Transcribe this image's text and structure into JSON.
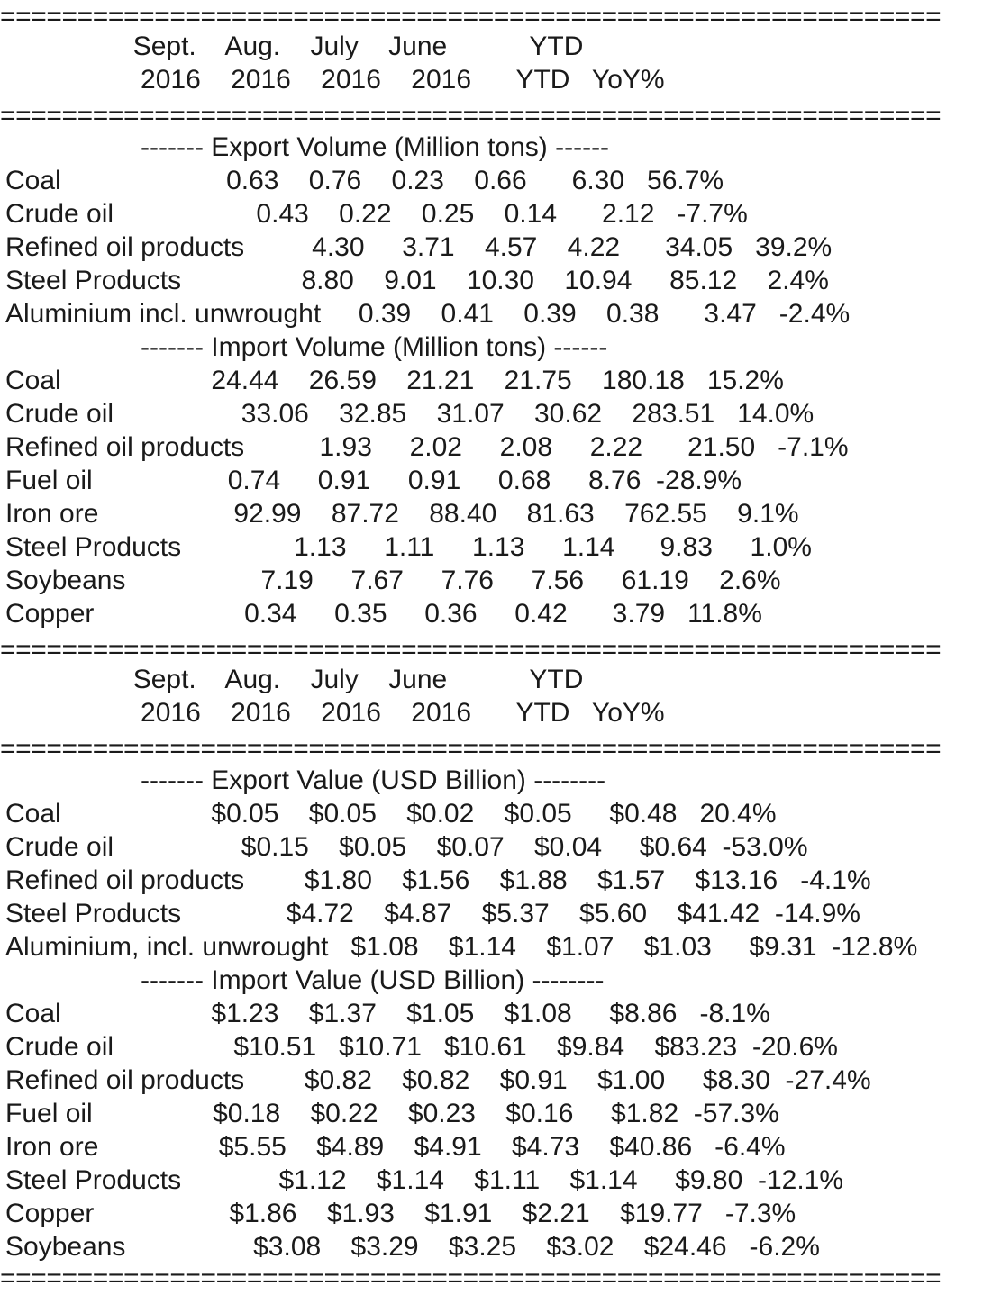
{
  "rule": "=============================================================",
  "sections": [
    {
      "header": [
        "                 Sept.    Aug.    July    June           YTD",
        "                  2016    2016    2016    2016      YTD   YoY%"
      ],
      "blocks": [
        {
          "title": "                  ------- Export Volume (Million tons) ------",
          "rows": [
            "Coal                      0.63    0.76    0.23    0.66      6.30   56.7%",
            "Crude oil                   0.43    0.22    0.25    0.14      2.12   -7.7%",
            "Refined oil products         4.30     3.71    4.57    4.22      34.05   39.2%",
            "Steel Products                8.80    9.01    10.30    10.94     85.12    2.4%",
            "Aluminium incl. unwrought     0.39    0.41    0.39    0.38      3.47   -2.4%"
          ]
        },
        {
          "title": "                  ------- Import Volume (Million tons) ------",
          "rows": [
            "Coal                    24.44    26.59    21.21    21.75    180.18   15.2%",
            "Crude oil                 33.06    32.85    31.07    30.62    283.51   14.0%",
            "Refined oil products          1.93     2.02     2.08     2.22      21.50   -7.1%",
            "Fuel oil                  0.74     0.91     0.91     0.68     8.76  -28.9%",
            "Iron ore                  92.99    87.72    88.40    81.63    762.55    9.1%",
            "Steel Products               1.13     1.11     1.13     1.14      9.83     1.0%",
            "Soybeans                  7.19     7.67     7.76     7.56     61.19    2.6%",
            "Copper                    0.34     0.35     0.36     0.42      3.79   11.8%"
          ]
        }
      ]
    },
    {
      "header": [
        "                 Sept.    Aug.    July    June           YTD",
        "                  2016    2016    2016    2016      YTD   YoY%"
      ],
      "blocks": [
        {
          "title": "                  ------- Export Value (USD Billion) --------",
          "rows": [
            "Coal                    $0.05    $0.05    $0.02    $0.05     $0.48   20.4%",
            "Crude oil                 $0.15    $0.05    $0.07    $0.04     $0.64  -53.0%",
            "Refined oil products        $1.80    $1.56    $1.88    $1.57    $13.16   -4.1%",
            "Steel Products              $4.72    $4.87    $5.37    $5.60    $41.42  -14.9%",
            "Aluminium, incl. unwrought   $1.08    $1.14    $1.07    $1.03     $9.31  -12.8%"
          ]
        },
        {
          "title": "                  ------- Import Value (USD Billion) --------",
          "rows": [
            "Coal                    $1.23    $1.37    $1.05    $1.08     $8.86   -8.1%",
            "Crude oil                $10.51   $10.71   $10.61    $9.84    $83.23  -20.6%",
            "Refined oil products        $0.82    $0.82    $0.91    $1.00     $8.30  -27.4%",
            "Fuel oil                $0.18    $0.22    $0.23    $0.16     $1.82  -57.3%",
            "Iron ore                $5.55    $4.89    $4.91    $4.73    $40.86   -6.4%",
            "Steel Products             $1.12    $1.14    $1.11    $1.14     $9.80  -12.1%",
            "Copper                  $1.86    $1.93    $1.91    $2.21    $19.77   -7.3%",
            "Soybeans                 $3.08    $3.29    $3.25    $3.02    $24.46   -6.2%"
          ]
        }
      ]
    }
  ]
}
